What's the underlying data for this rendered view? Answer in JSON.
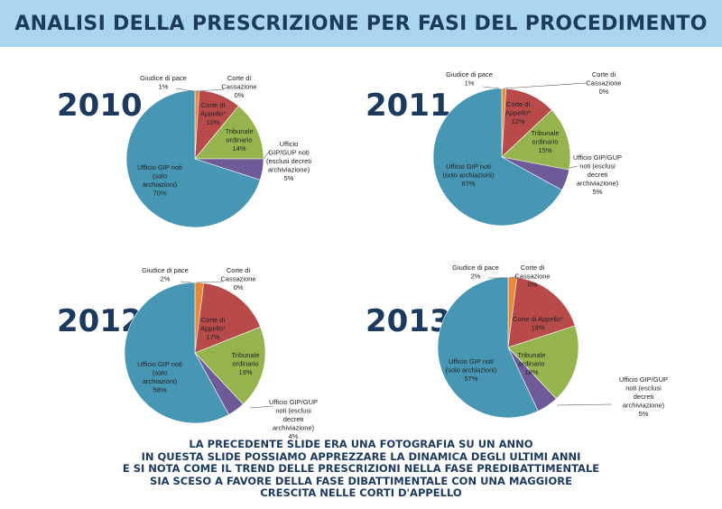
{
  "title": "ANALISI DELLA PRESCRIZIONE PER FASI DEL PROCEDIMENTO",
  "colors": {
    "banner": "#a9d6ee",
    "title": "#1c3a5e",
    "giudice_di_pace": "#e8893a",
    "corte_di_cassazione": "#6aa0d6",
    "corte_di_appello": "#b94a4a",
    "tribunale_ordinario": "#96b44e",
    "ufficio_gip_gup": "#6e5a96",
    "ufficio_gip_archiviazioni": "#4696b4"
  },
  "chart_data": [
    {
      "type": "pie",
      "title": "2010",
      "slices": [
        {
          "key": "giudice_di_pace",
          "label": [
            "Giudice di pace",
            "1%"
          ],
          "value": 1
        },
        {
          "key": "corte_di_cassazione",
          "label": [
            "Corte di",
            "Cassazione",
            "0%"
          ],
          "value": 0
        },
        {
          "key": "corte_di_appello",
          "label": [
            "Corte di",
            "Appello*",
            "10%"
          ],
          "value": 10
        },
        {
          "key": "tribunale_ordinario",
          "label": [
            "Tribunale",
            "ordinario",
            "14%"
          ],
          "value": 14
        },
        {
          "key": "ufficio_gip_gup",
          "label": [
            "Ufficio",
            "GIP/GUP noti",
            "(esclusi decreti",
            "archiviazione)",
            "5%"
          ],
          "value": 5
        },
        {
          "key": "ufficio_gip_archiviazioni",
          "label": [
            "Ufficio GIP noti",
            "(solo",
            "archiazioni)",
            "70%"
          ],
          "value": 70
        }
      ]
    },
    {
      "type": "pie",
      "title": "2011",
      "slices": [
        {
          "key": "giudice_di_pace",
          "label": [
            "Giudice di pace",
            "1%"
          ],
          "value": 1
        },
        {
          "key": "corte_di_cassazione",
          "label": [
            "Corte di",
            "Cassazione",
            "0%"
          ],
          "value": 0
        },
        {
          "key": "corte_di_appello",
          "label": [
            "Corte di",
            "Appello*",
            "12%"
          ],
          "value": 12
        },
        {
          "key": "tribunale_ordinario",
          "label": [
            "Tribunale",
            "ordinario",
            "15%"
          ],
          "value": 15
        },
        {
          "key": "ufficio_gip_gup",
          "label": [
            "Ufficio GIP/GUP",
            "noti (esclusi",
            "decreti",
            "archiviazione)",
            "5%"
          ],
          "value": 5
        },
        {
          "key": "ufficio_gip_archiviazioni",
          "label": [
            "Ufficio GIP noti",
            "(solo archiazioni)",
            "67%"
          ],
          "value": 67
        }
      ]
    },
    {
      "type": "pie",
      "title": "2012",
      "slices": [
        {
          "key": "giudice_di_pace",
          "label": [
            "Giudice di pace",
            "2%"
          ],
          "value": 2
        },
        {
          "key": "corte_di_cassazione",
          "label": [
            "Corte di",
            "Cassazione",
            "0%"
          ],
          "value": 0
        },
        {
          "key": "corte_di_appello",
          "label": [
            "Corte di",
            "Appello*",
            "17%"
          ],
          "value": 17
        },
        {
          "key": "tribunale_ordinario",
          "label": [
            "Tribunale",
            "ordinario",
            "19%"
          ],
          "value": 19
        },
        {
          "key": "ufficio_gip_gup",
          "label": [
            "Ufficio GIP/GUP",
            "noti (esclusi",
            "decreti",
            "archiviazione)",
            "4%"
          ],
          "value": 4
        },
        {
          "key": "ufficio_gip_archiviazioni",
          "label": [
            "Ufficio GIP noti",
            "(solo",
            "archiazioni)",
            "58%"
          ],
          "value": 58
        }
      ]
    },
    {
      "type": "pie",
      "title": "2013",
      "slices": [
        {
          "key": "giudice_di_pace",
          "label": [
            "Giudice di pace",
            "2%"
          ],
          "value": 2
        },
        {
          "key": "corte_di_cassazione",
          "label": [
            "Corte di",
            "Cassazione",
            "0%"
          ],
          "value": 0
        },
        {
          "key": "corte_di_appello",
          "label": [
            "Corte di Appello*",
            "18%"
          ],
          "value": 18
        },
        {
          "key": "tribunale_ordinario",
          "label": [
            "Tribunale",
            "ordinario",
            "18%"
          ],
          "value": 18
        },
        {
          "key": "ufficio_gip_gup",
          "label": [
            "Ufficio GIP/GUP",
            "noti (esclusi",
            "decreti",
            "archiviazione)",
            "5%"
          ],
          "value": 5
        },
        {
          "key": "ufficio_gip_archiviazioni",
          "label": [
            "Ufficio GIP noti",
            "(solo archiazioni)",
            "57%"
          ],
          "value": 57
        }
      ]
    }
  ],
  "footer": [
    "LA PRECEDENTE SLIDE ERA UNA FOTOGRAFIA SU UN ANNO",
    "IN QUESTA SLIDE POSSIAMO APPREZZARE LA DINAMICA DEGLI ULTIMI ANNI",
    "E SI NOTA COME IL TREND DELLE PRESCRIZIONI NELLA FASE PREDIBATTIMENTALE",
    "SIA SCESO A FAVORE DELLA FASE DIBATTIMENTALE CON UNA MAGGIORE",
    "CRESCITA NELLE CORTI D'APPELLO"
  ]
}
